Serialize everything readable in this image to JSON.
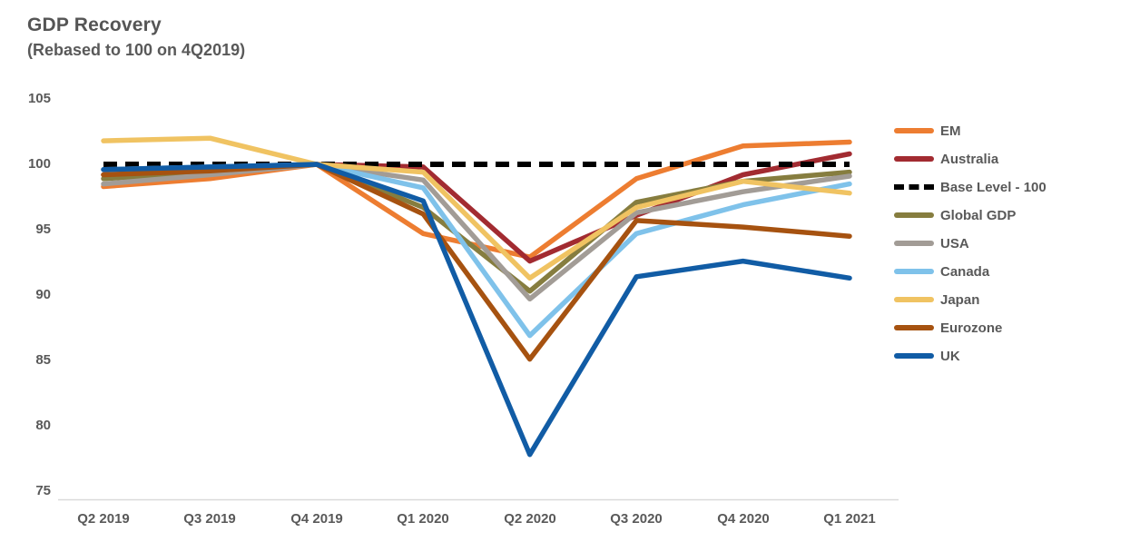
{
  "title": "GDP Recovery",
  "subtitle": "(Rebased to 100 on 4Q2019)",
  "colors": {
    "text": "#595959",
    "axis_line": "#D9D9D9",
    "title_text": "#555555"
  },
  "chart_data": {
    "type": "line",
    "title": "GDP Recovery",
    "subtitle": "(Rebased to 100 on 4Q2019)",
    "xlabel": "",
    "ylabel": "",
    "ylim": [
      75,
      105
    ],
    "y_ticks": [
      105,
      100,
      95,
      90,
      85,
      80,
      75
    ],
    "grid": false,
    "legend_position": "right",
    "categories": [
      "Q2 2019",
      "Q3 2019",
      "Q4 2019",
      "Q1 2020",
      "Q2 2020",
      "Q3 2020",
      "Q4 2020",
      "Q1 2021"
    ],
    "series": [
      {
        "name": "EM",
        "color": "#ED7D31",
        "dash": false,
        "values": [
          98.3,
          98.9,
          100,
          94.7,
          92.9,
          98.9,
          101.4,
          101.7
        ]
      },
      {
        "name": "Australia",
        "color": "#A22B31",
        "dash": false,
        "values": [
          99.2,
          99.5,
          100,
          99.8,
          92.6,
          96.1,
          99.2,
          100.8
        ]
      },
      {
        "name": "Base Level - 100",
        "color": "#000000",
        "dash": true,
        "values": [
          100,
          100,
          100,
          100,
          100,
          100,
          100,
          100
        ]
      },
      {
        "name": "Global GDP",
        "color": "#867D3F",
        "dash": false,
        "values": [
          98.9,
          99.4,
          100,
          96.7,
          90.3,
          97.1,
          98.7,
          99.4
        ]
      },
      {
        "name": "USA",
        "color": "#A29C96",
        "dash": false,
        "values": [
          98.5,
          99.2,
          100,
          98.8,
          89.7,
          96.3,
          97.9,
          99.1
        ]
      },
      {
        "name": "Canada",
        "color": "#7FC2EA",
        "dash": false,
        "values": [
          99.6,
          99.8,
          100,
          98.2,
          86.9,
          94.7,
          96.9,
          98.5
        ]
      },
      {
        "name": "Japan",
        "color": "#F0C362",
        "dash": false,
        "values": [
          101.8,
          102.0,
          100,
          99.4,
          91.3,
          96.7,
          98.7,
          97.8
        ]
      },
      {
        "name": "Eurozone",
        "color": "#A65210",
        "dash": false,
        "values": [
          99.2,
          99.5,
          100,
          96.2,
          85.1,
          95.7,
          95.2,
          94.5
        ]
      },
      {
        "name": "UK",
        "color": "#115CA5",
        "dash": false,
        "values": [
          99.6,
          99.8,
          100,
          97.2,
          77.8,
          91.4,
          92.6,
          91.3
        ]
      }
    ]
  }
}
